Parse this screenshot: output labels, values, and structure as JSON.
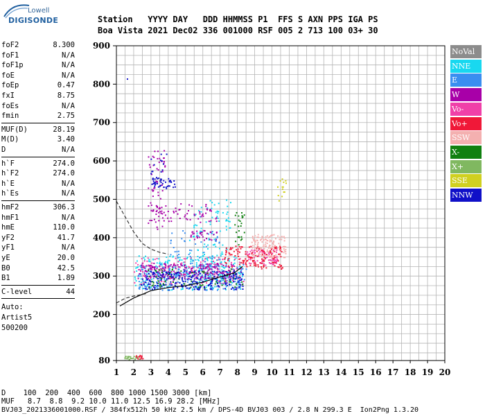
{
  "logo": {
    "line1": "Lowell",
    "line2": "DIGISONDE"
  },
  "header": {
    "labels": "Station   YYYY DAY   DDD HHMMSS P1  FFS S AXN PPS IGA PS",
    "values": "Boa Vista 2021 Dec02 336 001000 RSF 005 2 713 100 03+ 30"
  },
  "params_group1": [
    {
      "name": "foF2",
      "value": "8.300"
    },
    {
      "name": "foF1",
      "value": "N/A"
    },
    {
      "name": "foF1p",
      "value": "N/A"
    },
    {
      "name": "foE",
      "value": "N/A"
    },
    {
      "name": "foEp",
      "value": "0.47"
    },
    {
      "name": "fxI",
      "value": "8.75"
    },
    {
      "name": "foEs",
      "value": "N/A"
    },
    {
      "name": "fmin",
      "value": "2.75"
    }
  ],
  "params_group2": [
    {
      "name": "MUF(D)",
      "value": "28.19"
    },
    {
      "name": "M(D)",
      "value": "3.40"
    },
    {
      "name": "D",
      "value": "N/A"
    }
  ],
  "params_group3": [
    {
      "name": "h`F",
      "value": "274.0"
    },
    {
      "name": "h`F2",
      "value": "274.0"
    },
    {
      "name": "h`E",
      "value": "N/A"
    },
    {
      "name": "h`Es",
      "value": "N/A"
    }
  ],
  "params_group4": [
    {
      "name": "hmF2",
      "value": "306.3"
    },
    {
      "name": "hmF1",
      "value": "N/A"
    },
    {
      "name": "hmE",
      "value": "110.0"
    },
    {
      "name": "yF2",
      "value": "41.7"
    },
    {
      "name": "yF1",
      "value": "N/A"
    },
    {
      "name": "yE",
      "value": "20.0"
    },
    {
      "name": "B0",
      "value": "42.5"
    },
    {
      "name": "B1",
      "value": "1.89"
    }
  ],
  "clevel": {
    "name": "C-level",
    "value": "44"
  },
  "autoscaling": {
    "line1": "Auto:",
    "line2": "Artist5",
    "line3": "500200"
  },
  "legend": [
    {
      "label": "NoVal",
      "color": "#8c8c8c"
    },
    {
      "label": "NNE",
      "color": "#18d8f0"
    },
    {
      "label": "E",
      "color": "#3a8ef0"
    },
    {
      "label": "W",
      "color": "#a800a8"
    },
    {
      "label": "Vo-",
      "color": "#f040a8"
    },
    {
      "label": "Vo+",
      "color": "#f01838"
    },
    {
      "label": "SSW",
      "color": "#f4b0b0"
    },
    {
      "label": "X-",
      "color": "#108010"
    },
    {
      "label": "X+",
      "color": "#80b860"
    },
    {
      "label": "SSE",
      "color": "#d0d020"
    },
    {
      "label": "NNW",
      "color": "#1010c8"
    }
  ],
  "bottom": {
    "line1": "D    100  200  400  600  800 1000 1500 3000 [km]",
    "line2": "MUF   8.7  8.8  9.2 10.0 11.0 12.5 16.9 28.2 [MHz]",
    "line3": "BVJ03_2021336001000.RSF / 384fx512h 50 kHz 2.5 km / DPS-4D BVJ03 003 / 2.8 N 299.3 E  Ion2Png 1.3.20"
  },
  "chart_data": {
    "type": "scatter",
    "xlabel": "",
    "ylabel": "",
    "xlim": [
      1,
      20
    ],
    "ylim": [
      80,
      900
    ],
    "x_ticks": [
      "1",
      "2",
      "3",
      "4",
      "5",
      "6",
      "7",
      "8",
      "9",
      "10",
      "11",
      "12",
      "13",
      "14",
      "15",
      "16",
      "17",
      "18",
      "19",
      "20"
    ],
    "y_ticks": [
      "80",
      "200",
      "300",
      "400",
      "500",
      "600",
      "700",
      "800",
      "900"
    ],
    "y_tick_values": [
      80,
      200,
      300,
      400,
      500,
      600,
      700,
      800,
      900
    ],
    "grid": true,
    "legend_placement": "right",
    "profile_curve": [
      [
        1.2,
        222
      ],
      [
        2,
        243
      ],
      [
        3,
        262
      ],
      [
        4,
        270
      ],
      [
        5,
        275
      ],
      [
        6,
        284
      ],
      [
        7,
        298
      ],
      [
        7.8,
        308
      ],
      [
        8.3,
        325
      ]
    ],
    "dashed_curve_low": [
      [
        1,
        230
      ],
      [
        1.5,
        242
      ],
      [
        2,
        248
      ],
      [
        2.8,
        255
      ]
    ],
    "dashed_curve_high": [
      [
        1,
        495
      ],
      [
        1.5,
        455
      ],
      [
        2,
        415
      ],
      [
        2.5,
        385
      ],
      [
        3,
        370
      ],
      [
        3.5,
        362
      ],
      [
        4,
        357
      ]
    ],
    "clusters": [
      {
        "series": "NNE",
        "xmin": 2.0,
        "xmax": 8.3,
        "ymin": 265,
        "ymax": 355,
        "n": 260
      },
      {
        "series": "NNE",
        "xmin": 5.2,
        "xmax": 7.6,
        "ymin": 300,
        "ymax": 500,
        "n": 110
      },
      {
        "series": "E",
        "xmin": 2.2,
        "xmax": 8.5,
        "ymin": 265,
        "ymax": 335,
        "n": 230
      },
      {
        "series": "E",
        "xmin": 4.0,
        "xmax": 7.0,
        "ymin": 300,
        "ymax": 420,
        "n": 70
      },
      {
        "series": "W",
        "xmin": 2.2,
        "xmax": 7.8,
        "ymin": 295,
        "ymax": 335,
        "n": 220
      },
      {
        "series": "W",
        "xmin": 2.8,
        "xmax": 3.8,
        "ymin": 420,
        "ymax": 640,
        "n": 55
      },
      {
        "series": "W",
        "xmin": 3.0,
        "xmax": 6.8,
        "ymin": 440,
        "ymax": 490,
        "n": 70
      },
      {
        "series": "W",
        "xmin": 5.2,
        "xmax": 6.8,
        "ymin": 395,
        "ymax": 420,
        "n": 30
      },
      {
        "series": "Vo-",
        "xmin": 2.0,
        "xmax": 8.4,
        "ymin": 280,
        "ymax": 350,
        "n": 120
      },
      {
        "series": "Vo-",
        "xmin": 8.5,
        "xmax": 10.3,
        "ymin": 330,
        "ymax": 370,
        "n": 80
      },
      {
        "series": "Vo+",
        "xmin": 7.2,
        "xmax": 10.6,
        "ymin": 320,
        "ymax": 380,
        "n": 140
      },
      {
        "series": "Vo+",
        "xmin": 2.0,
        "xmax": 2.5,
        "ymin": 85,
        "ymax": 95,
        "n": 15
      },
      {
        "series": "SSW",
        "xmin": 8.8,
        "xmax": 10.8,
        "ymin": 350,
        "ymax": 410,
        "n": 130
      },
      {
        "series": "X-",
        "xmin": 2.5,
        "xmax": 8.4,
        "ymin": 270,
        "ymax": 320,
        "n": 70
      },
      {
        "series": "X-",
        "xmin": 7.8,
        "xmax": 8.4,
        "ymin": 380,
        "ymax": 470,
        "n": 25
      },
      {
        "series": "X+",
        "xmin": 1.4,
        "xmax": 2.3,
        "ymin": 84,
        "ymax": 93,
        "n": 20
      },
      {
        "series": "SSE",
        "xmin": 10.3,
        "xmax": 10.8,
        "ymin": 490,
        "ymax": 555,
        "n": 14
      },
      {
        "series": "NNW",
        "xmin": 2.4,
        "xmax": 8.3,
        "ymin": 265,
        "ymax": 315,
        "n": 220
      },
      {
        "series": "NNW",
        "xmin": 3.0,
        "xmax": 4.4,
        "ymin": 530,
        "ymax": 560,
        "n": 45
      },
      {
        "series": "NNW",
        "xmin": 2.9,
        "xmax": 4.0,
        "ymin": 560,
        "ymax": 625,
        "n": 12
      }
    ]
  }
}
